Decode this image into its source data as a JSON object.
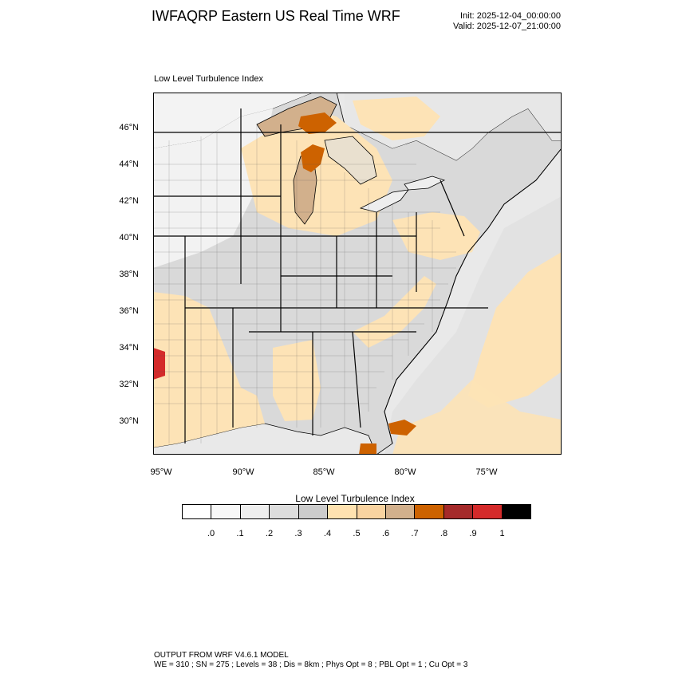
{
  "header": {
    "title": "IWFAQRP Eastern US Real Time WRF",
    "init": "Init: 2025-12-04_00:00:00",
    "valid": "Valid: 2025-12-07_21:00:00"
  },
  "plot": {
    "label": "Low Level Turbulence Index",
    "lat_labels": [
      "46°N",
      "44°N",
      "42°N",
      "40°N",
      "38°N",
      "36°N",
      "34°N",
      "32°N",
      "30°N"
    ],
    "lon_labels": [
      "95°W",
      "90°W",
      "85°W",
      "80°W",
      "75°W"
    ]
  },
  "colorbar": {
    "title": "Low Level Turbulence Index",
    "colors": [
      "#ffffff",
      "#f7f7f7",
      "#eeeeee",
      "#dddddd",
      "#cccccc",
      "#ffe2b0",
      "#f9d3a0",
      "#d2b08c",
      "#cd6200",
      "#a52a2a",
      "#d42a2a",
      "#000000"
    ],
    "ticks": [
      ".0",
      ".1",
      ".2",
      ".3",
      ".4",
      ".5",
      ".6",
      ".7",
      ".8",
      ".9",
      "1"
    ]
  },
  "footer": {
    "line1": "OUTPUT FROM WRF V4.6.1 MODEL",
    "line2": "WE = 310 ; SN = 275 ; Levels = 38 ; Dis = 8km ; Phys Opt = 8 ; PBL Opt = 1 ; Cu Opt = 3"
  }
}
